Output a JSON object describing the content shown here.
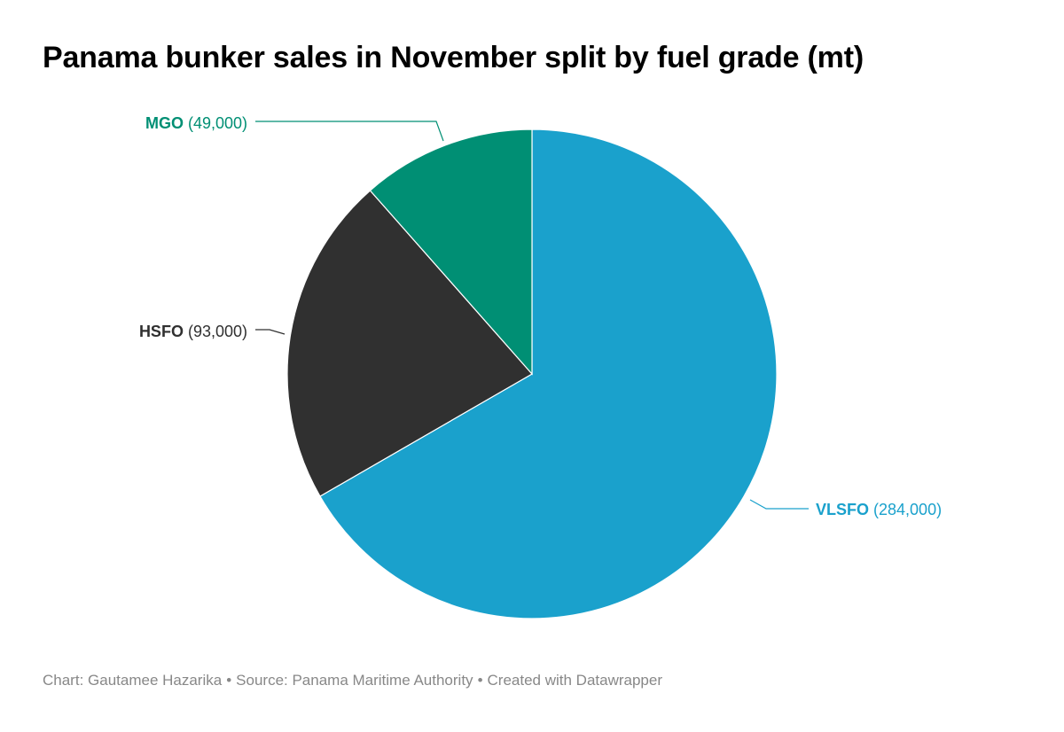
{
  "title": "Panama bunker sales in November split by fuel grade (mt)",
  "chart_data": {
    "type": "pie",
    "title": "Panama bunker sales in November split by fuel grade (mt)",
    "slices": [
      {
        "name": "VLSFO",
        "value": 284000,
        "value_label": "(284,000)",
        "color": "#1aa1cc"
      },
      {
        "name": "HSFO",
        "value": 93000,
        "value_label": "(93,000)",
        "color": "#303030"
      },
      {
        "name": "MGO",
        "value": 49000,
        "value_label": "(49,000)",
        "color": "#008f74"
      }
    ],
    "start": "12 o'clock",
    "direction": "clockwise"
  },
  "footer": {
    "chart_credit": "Chart: Gautamee Hazarika",
    "separator": "•",
    "source": "Source: Panama Maritime Authority",
    "created_with": "Created with Datawrapper"
  }
}
